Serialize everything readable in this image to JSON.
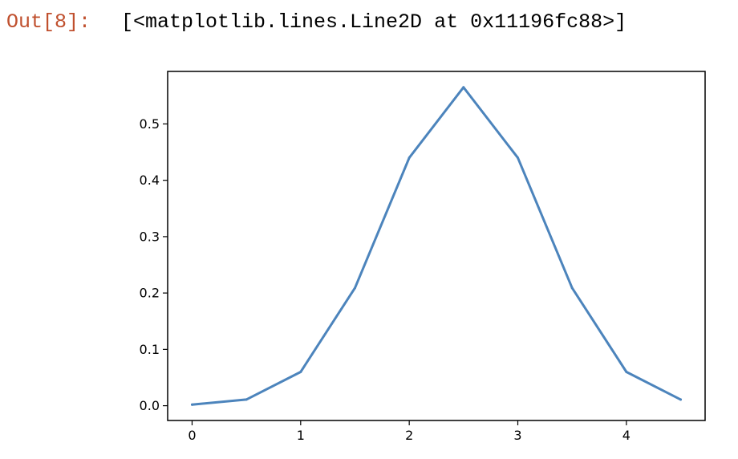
{
  "cell": {
    "prompt": "Out[8]:",
    "repr": "[<matplotlib.lines.Line2D at 0x11196fc88>]"
  },
  "colors": {
    "line": "#4c84bc",
    "axes": "#000000",
    "prompt": "#c0502e"
  },
  "chart_data": {
    "type": "line",
    "x": [
      0,
      0.5,
      1,
      1.5,
      2,
      2.5,
      3,
      3.5,
      4,
      4.5
    ],
    "series": [
      {
        "values": [
          0.002,
          0.011,
          0.06,
          0.209,
          0.44,
          0.565,
          0.44,
          0.209,
          0.06,
          0.011
        ]
      }
    ],
    "xticks": [
      "0",
      "1",
      "2",
      "3",
      "4"
    ],
    "yticks": [
      "0.0",
      "0.1",
      "0.2",
      "0.3",
      "0.4",
      "0.5"
    ],
    "xlim": [
      -0.225,
      4.725
    ],
    "ylim": [
      -0.0262,
      0.5932
    ],
    "title": "",
    "xlabel": "",
    "ylabel": "",
    "grid": false,
    "legend": "none"
  }
}
